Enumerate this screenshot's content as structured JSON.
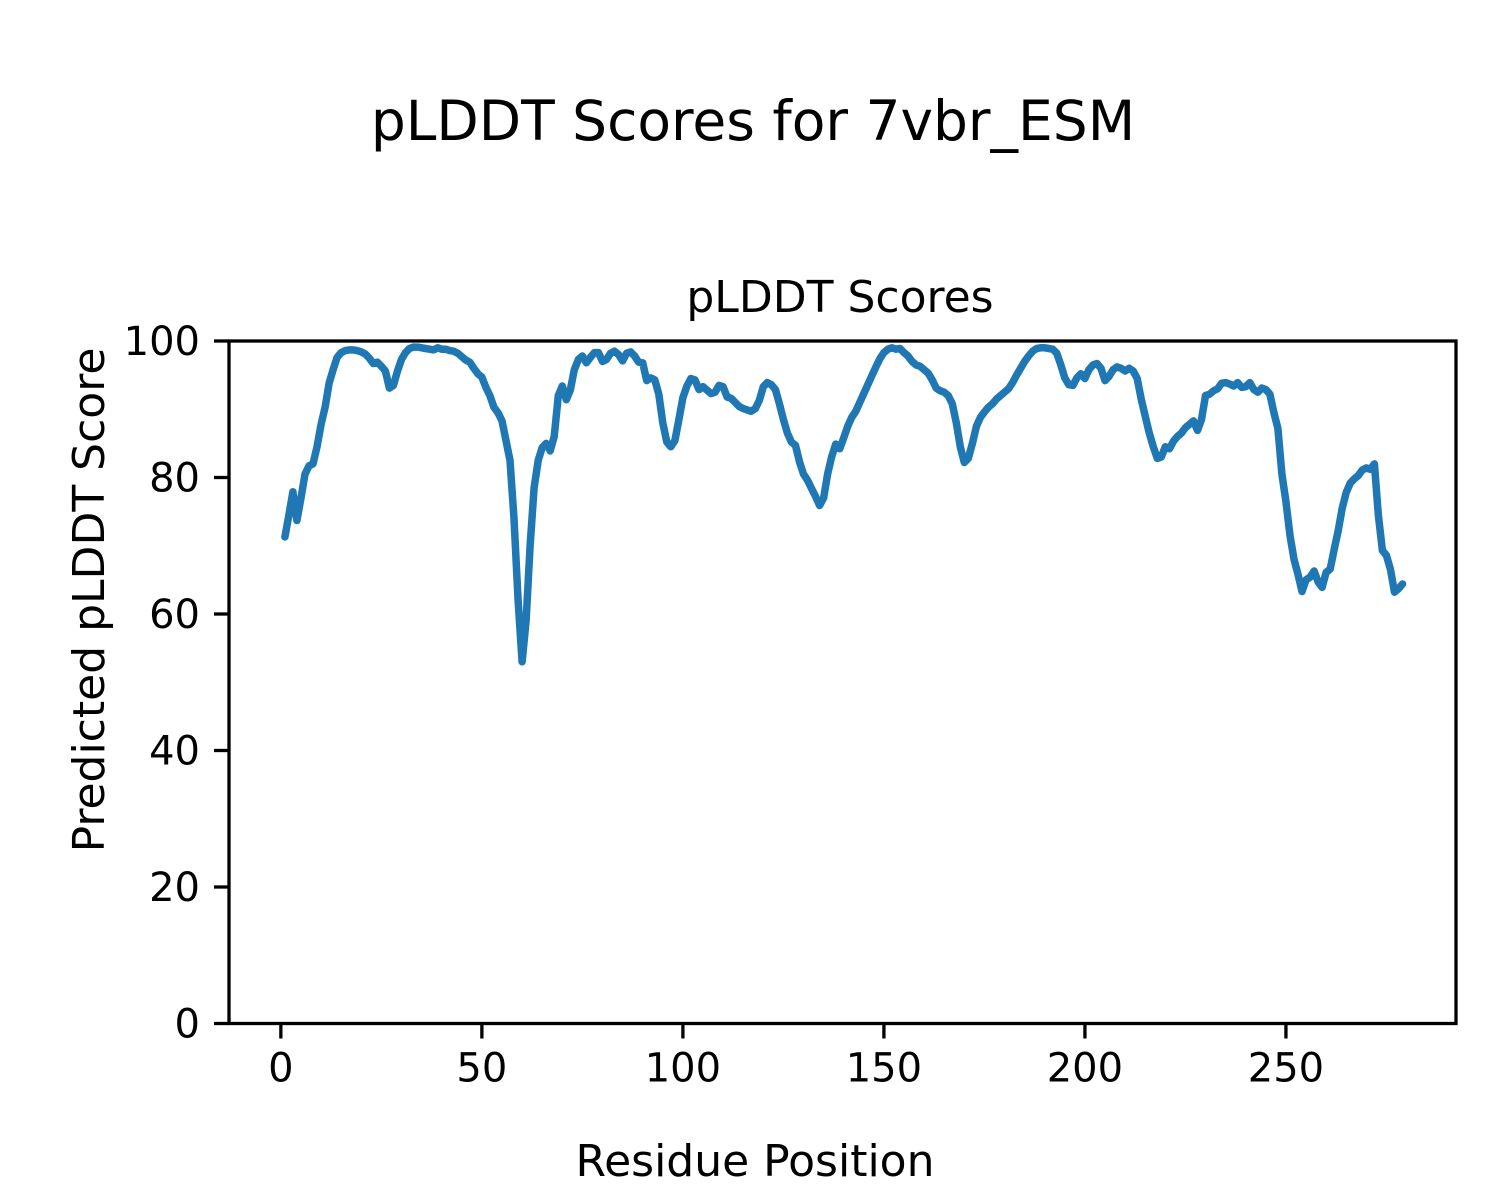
{
  "figure": {
    "suptitle": "pLDDT Scores for 7vbr_ESM",
    "background_color": "#ffffff",
    "text_color": "#000000"
  },
  "chart_data": {
    "type": "line",
    "title": "pLDDT Scores",
    "xlabel": "Residue Position",
    "ylabel": "Predicted pLDDT Score",
    "xlim": [
      -12.9,
      292.3
    ],
    "ylim": [
      0,
      100
    ],
    "x_ticks": [
      0,
      50,
      100,
      150,
      200,
      250
    ],
    "y_ticks": [
      0,
      20,
      40,
      60,
      80,
      100
    ],
    "grid": false,
    "legend": false,
    "line_color": "#1f77b4",
    "axis_color": "#000000",
    "series": [
      {
        "name": "pLDDT",
        "x_start": 1,
        "x_step": 1,
        "values": [
          71.3,
          74.5,
          77.9,
          73.7,
          77.0,
          80.5,
          81.7,
          82.0,
          84.5,
          87.8,
          90.3,
          93.8,
          95.8,
          97.6,
          98.3,
          98.6,
          98.7,
          98.7,
          98.6,
          98.4,
          98.1,
          97.5,
          96.7,
          96.9,
          96.3,
          95.6,
          93.1,
          93.5,
          95.6,
          97.3,
          98.3,
          98.9,
          99.1,
          99.1,
          99.0,
          98.9,
          98.8,
          98.7,
          99.0,
          98.8,
          98.8,
          98.6,
          98.5,
          98.2,
          97.7,
          97.2,
          96.9,
          96.0,
          95.2,
          94.7,
          93.2,
          92.0,
          90.3,
          89.5,
          88.3,
          85.4,
          82.5,
          74.0,
          62.0,
          53.0,
          59.0,
          70.0,
          78.5,
          82.5,
          84.4,
          85.0,
          83.9,
          86.0,
          92.0,
          93.4,
          91.4,
          92.8,
          95.8,
          97.3,
          97.8,
          96.8,
          97.6,
          98.3,
          98.3,
          97.0,
          97.3,
          98.2,
          98.5,
          98.0,
          97.1,
          98.2,
          98.4,
          97.8,
          96.9,
          96.8,
          94.2,
          94.6,
          94.3,
          92.2,
          88.0,
          85.2,
          84.5,
          85.4,
          88.5,
          91.7,
          93.4,
          94.5,
          94.3,
          92.9,
          93.3,
          92.8,
          92.3,
          92.5,
          93.5,
          93.3,
          91.8,
          91.6,
          91.0,
          90.4,
          90.1,
          89.9,
          89.7,
          90.1,
          91.3,
          93.3,
          93.9,
          93.6,
          92.9,
          90.8,
          88.5,
          86.5,
          85.2,
          84.7,
          82.3,
          80.5,
          79.6,
          78.4,
          77.2,
          75.9,
          77.0,
          80.5,
          83.0,
          84.9,
          84.2,
          85.8,
          87.5,
          88.8,
          89.7,
          91.0,
          92.3,
          93.6,
          94.9,
          96.2,
          97.4,
          98.3,
          98.8,
          99.0,
          98.8,
          98.9,
          98.3,
          97.8,
          97.0,
          96.5,
          96.3,
          95.8,
          95.3,
          94.3,
          93.1,
          92.7,
          92.5,
          92.0,
          90.8,
          88.0,
          84.5,
          82.2,
          82.8,
          85.0,
          87.5,
          88.8,
          89.6,
          90.3,
          90.8,
          91.5,
          92.0,
          92.5,
          93.0,
          93.9,
          95.0,
          96.0,
          97.0,
          97.8,
          98.5,
          98.9,
          99.0,
          99.0,
          98.9,
          98.8,
          98.2,
          96.5,
          94.6,
          93.6,
          93.5,
          94.6,
          95.2,
          94.5,
          95.8,
          96.5,
          96.7,
          96.0,
          94.2,
          94.8,
          95.8,
          96.2,
          96.0,
          95.6,
          96.0,
          95.6,
          94.5,
          91.5,
          89.0,
          86.5,
          84.5,
          82.8,
          83.0,
          84.5,
          84.2,
          85.3,
          86.0,
          86.5,
          87.3,
          87.8,
          88.3,
          86.9,
          88.5,
          92.0,
          92.2,
          92.7,
          93.0,
          93.8,
          93.9,
          93.7,
          93.4,
          93.9,
          93.2,
          93.3,
          93.9,
          92.9,
          92.5,
          93.1,
          92.9,
          92.2,
          89.5,
          87.2,
          80.5,
          76.5,
          71.5,
          68.0,
          65.8,
          63.3,
          65.0,
          65.4,
          66.3,
          64.7,
          63.9,
          66.1,
          66.6,
          69.5,
          72.2,
          75.5,
          77.8,
          79.2,
          79.8,
          80.3,
          81.1,
          81.4,
          81.2,
          82.0,
          74.4,
          69.3,
          68.6,
          66.5,
          63.2,
          63.7,
          64.4
        ]
      }
    ]
  }
}
